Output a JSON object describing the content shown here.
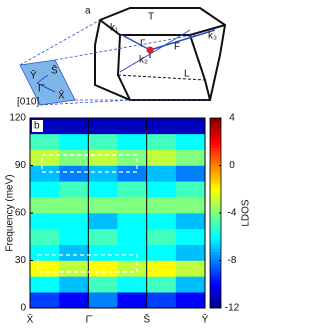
{
  "panel_a": {
    "label": "a",
    "k1": "k₁",
    "k2": "k₂",
    "k3": "k₃",
    "T": "T",
    "F": "F",
    "L": "L",
    "Gamma": "Γ",
    "Ybar": "Ȳ",
    "Gbar": "Γ̄",
    "Sbar": "S̄",
    "Xbar": "X̄",
    "direction": "[010]"
  },
  "chart_data": {
    "type": "heatmap",
    "panel_label": "b",
    "categories": [
      "X̄",
      "Γ̄",
      "S̄",
      "Ȳ"
    ],
    "y_label": "Frequency (meV)",
    "colorbar_label": "LDOS",
    "ylim": [
      0,
      120
    ],
    "yticks": [
      0,
      30,
      60,
      90,
      120
    ],
    "zlim": [
      -12,
      4
    ],
    "zticks": [
      4,
      0,
      -4,
      -8,
      -12
    ],
    "x_edges": [
      0,
      0.5,
      1,
      1.5,
      2,
      2.5,
      3
    ],
    "y_edges": [
      0,
      10,
      20,
      30,
      40,
      50,
      60,
      70,
      80,
      90,
      100,
      110,
      120
    ],
    "z": [
      [
        -9,
        -10,
        -8,
        -10,
        -9,
        -10
      ],
      [
        -6,
        -7,
        -5,
        -6,
        -5,
        -7
      ],
      [
        -2,
        -3,
        -2,
        -3,
        -2,
        -3
      ],
      [
        -6,
        -7,
        -6,
        -6,
        -6,
        -7
      ],
      [
        -5,
        -6,
        -5,
        -6,
        -5,
        -6
      ],
      [
        -6,
        -6,
        -7,
        -6,
        -6,
        -7
      ],
      [
        -4,
        -4,
        -4,
        -4,
        -4,
        -4
      ],
      [
        -6,
        -5,
        -6,
        -5,
        -6,
        -5
      ],
      [
        -7,
        -8,
        -7,
        -8,
        -7,
        -8
      ],
      [
        -3,
        -4,
        -3,
        -4,
        -3,
        -4
      ],
      [
        -5,
        -6,
        -5,
        -6,
        -5,
        -6
      ],
      [
        -11,
        -11,
        -11,
        -11,
        -11,
        -11
      ]
    ]
  }
}
